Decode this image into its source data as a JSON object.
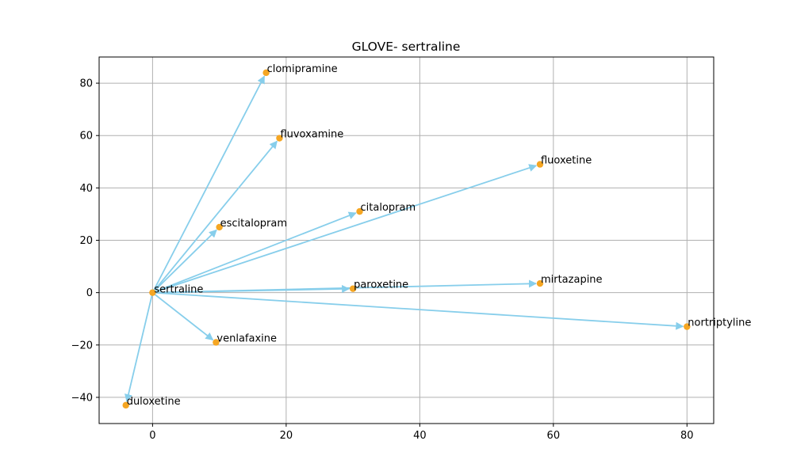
{
  "chart_data": {
    "type": "scatter",
    "title": "GLOVE- sertraline",
    "xlabel": "",
    "ylabel": "",
    "xlim": [
      -8,
      84
    ],
    "ylim": [
      -50,
      90
    ],
    "xticks": [
      0,
      20,
      40,
      60,
      80
    ],
    "yticks": [
      -40,
      -20,
      0,
      20,
      40,
      60,
      80
    ],
    "grid": true,
    "colors": {
      "point": "#f5a623",
      "arrow": "#87ceeb",
      "grid": "#b0b0b0"
    },
    "origin": {
      "label": "sertraline",
      "x": 0,
      "y": 0
    },
    "points": [
      {
        "label": "clomipramine",
        "x": 17,
        "y": 84
      },
      {
        "label": "fluvoxamine",
        "x": 19,
        "y": 59
      },
      {
        "label": "fluoxetine",
        "x": 58,
        "y": 49
      },
      {
        "label": "citalopram",
        "x": 31,
        "y": 31
      },
      {
        "label": "escitalopram",
        "x": 10,
        "y": 25
      },
      {
        "label": "paroxetine",
        "x": 30,
        "y": 1.5
      },
      {
        "label": "mirtazapine",
        "x": 58,
        "y": 3.5
      },
      {
        "label": "nortriptyline",
        "x": 80,
        "y": -13
      },
      {
        "label": "venlafaxine",
        "x": 9.5,
        "y": -19
      },
      {
        "label": "duloxetine",
        "x": -4,
        "y": -43
      }
    ]
  }
}
